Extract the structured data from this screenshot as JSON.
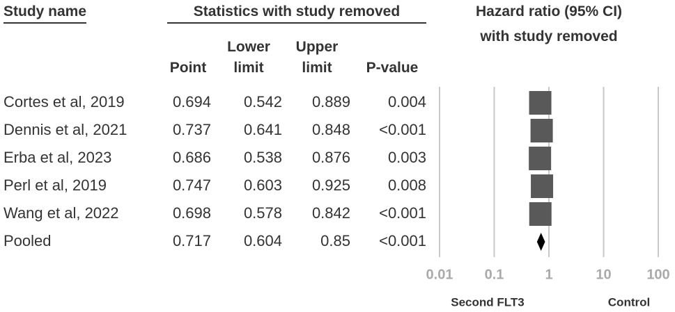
{
  "chart_data": {
    "type": "forest",
    "study_header": "Study name",
    "stats_header": "Statistics with study removed",
    "title": [
      "Hazard ratio (95% CI)",
      "with study removed"
    ],
    "columns": [
      "Point",
      "Lower limit",
      "Upper limit",
      "P-value"
    ],
    "categories": [
      "Cortes et al, 2019",
      "Dennis et al, 2021",
      "Erba et al, 2023",
      "Perl et al, 2019",
      "Wang et al, 2022",
      "Pooled"
    ],
    "point": [
      0.694,
      0.737,
      0.686,
      0.747,
      0.698,
      0.717
    ],
    "lower": [
      0.542,
      0.641,
      0.538,
      0.603,
      0.578,
      0.604
    ],
    "upper": [
      0.889,
      0.848,
      0.876,
      0.925,
      0.842,
      0.85
    ],
    "p_values": [
      "0.004",
      "<0.001",
      "0.003",
      "0.008",
      "<0.001",
      "<0.001"
    ],
    "xlim": [
      0.01,
      100
    ],
    "xticks": [
      0.01,
      0.1,
      1,
      10,
      100
    ],
    "log_x": true,
    "grid": true,
    "left_label": "Second FLT3",
    "right_label": "Control",
    "marker_color": "#595959",
    "pooled_color": "#000000"
  }
}
